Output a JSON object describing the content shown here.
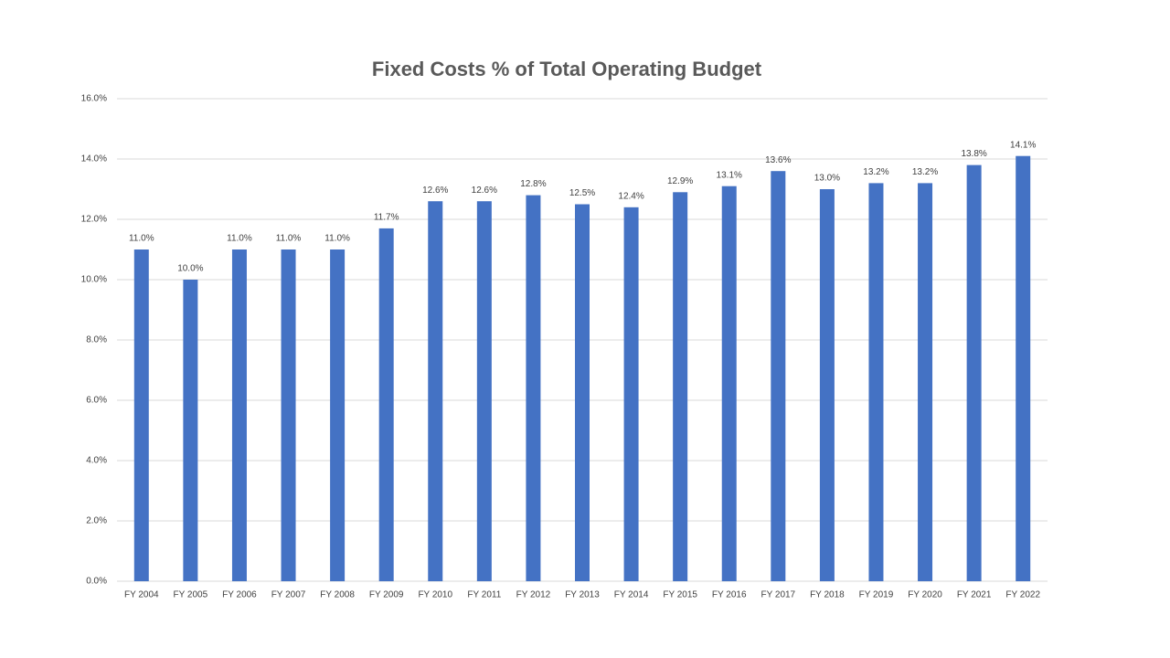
{
  "chart_data": {
    "type": "bar",
    "title": "Fixed Costs % of Total Operating Budget",
    "categories": [
      "FY 2004",
      "FY 2005",
      "FY 2006",
      "FY 2007",
      "FY 2008",
      "FY 2009",
      "FY 2010",
      "FY 2011",
      "FY 2012",
      "FY 2013",
      "FY 2014",
      "FY 2015",
      "FY 2016",
      "FY 2017",
      "FY 2018",
      "FY 2019",
      "FY 2020",
      "FY 2021",
      "FY 2022"
    ],
    "values": [
      11.0,
      10.0,
      11.0,
      11.0,
      11.0,
      11.7,
      12.6,
      12.6,
      12.8,
      12.5,
      12.4,
      12.9,
      13.1,
      13.6,
      13.0,
      13.2,
      13.2,
      13.8,
      14.1
    ],
    "value_labels": [
      "11.0%",
      "10.0%",
      "11.0%",
      "11.0%",
      "11.0%",
      "11.7%",
      "12.6%",
      "12.6%",
      "12.8%",
      "12.5%",
      "12.4%",
      "12.9%",
      "13.1%",
      "13.6%",
      "13.0%",
      "13.2%",
      "13.2%",
      "13.8%",
      "14.1%"
    ],
    "color": "#4472c4",
    "ylim": [
      0,
      16
    ],
    "yticks": [
      {
        "value": 0,
        "label": "0.0%"
      },
      {
        "value": 2,
        "label": "2.0%"
      },
      {
        "value": 4,
        "label": "4.0%"
      },
      {
        "value": 6,
        "label": "6.0%"
      },
      {
        "value": 8,
        "label": "8.0%"
      },
      {
        "value": 10,
        "label": "10.0%"
      },
      {
        "value": 12,
        "label": "12.0%"
      },
      {
        "value": 14,
        "label": "14.0%"
      },
      {
        "value": 16,
        "label": "16.0%"
      }
    ],
    "grid": true
  }
}
